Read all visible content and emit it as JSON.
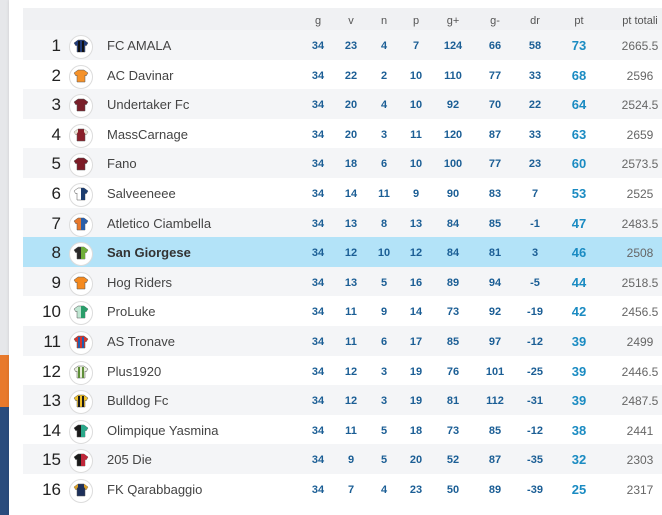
{
  "headers": {
    "g": "g",
    "v": "v",
    "n": "n",
    "p": "p",
    "gplus": "g+",
    "gminus": "g-",
    "dr": "dr",
    "pt": "pt",
    "tot": "pt totali"
  },
  "rows": [
    {
      "pos": "1",
      "team": "FC AMALA",
      "g": "34",
      "v": "23",
      "n": "4",
      "p": "7",
      "gplus": "124",
      "gminus": "66",
      "dr": "58",
      "pt": "73",
      "tot": "2665.5",
      "shirt": "#1f3a7a",
      "accent": "#111111",
      "style": "stripes"
    },
    {
      "pos": "2",
      "team": "AC Davinar",
      "g": "34",
      "v": "22",
      "n": "2",
      "p": "10",
      "gplus": "110",
      "gminus": "77",
      "dr": "33",
      "pt": "68",
      "tot": "2596",
      "shirt": "#f5922a",
      "accent": "#f5922a",
      "style": "plain"
    },
    {
      "pos": "3",
      "team": "Undertaker Fc",
      "g": "34",
      "v": "20",
      "n": "4",
      "p": "10",
      "gplus": "92",
      "gminus": "70",
      "dr": "22",
      "pt": "64",
      "tot": "2524.5",
      "shirt": "#7a1f2a",
      "accent": "#7a1f2a",
      "style": "plain"
    },
    {
      "pos": "4",
      "team": "MassCarnage",
      "g": "34",
      "v": "20",
      "n": "3",
      "p": "11",
      "gplus": "120",
      "gminus": "87",
      "dr": "33",
      "pt": "63",
      "tot": "2659",
      "shirt": "#8a1f2a",
      "accent": "#e8e0d0",
      "style": "sleeves"
    },
    {
      "pos": "5",
      "team": "Fano",
      "g": "34",
      "v": "18",
      "n": "6",
      "p": "10",
      "gplus": "100",
      "gminus": "77",
      "dr": "23",
      "pt": "60",
      "tot": "2573.5",
      "shirt": "#7d1b26",
      "accent": "#7d1b26",
      "style": "plain"
    },
    {
      "pos": "6",
      "team": "Salveeneee",
      "g": "34",
      "v": "14",
      "n": "11",
      "p": "9",
      "gplus": "90",
      "gminus": "83",
      "dr": "7",
      "pt": "53",
      "tot": "2525",
      "shirt": "#ffffff",
      "accent": "#1c3c6e",
      "style": "half"
    },
    {
      "pos": "7",
      "team": "Atletico Ciambella",
      "g": "34",
      "v": "13",
      "n": "8",
      "p": "13",
      "gplus": "84",
      "gminus": "85",
      "dr": "-1",
      "pt": "47",
      "tot": "2483.5",
      "shirt": "#e8792c",
      "accent": "#2a5ea8",
      "style": "half"
    },
    {
      "pos": "8",
      "team": "San Giorgese",
      "g": "34",
      "v": "12",
      "n": "10",
      "p": "12",
      "gplus": "84",
      "gminus": "81",
      "dr": "3",
      "pt": "46",
      "tot": "2508",
      "shirt": "#2a2a2a",
      "accent": "#6fae3a",
      "style": "half",
      "highlight": true
    },
    {
      "pos": "9",
      "team": "Hog Riders",
      "g": "34",
      "v": "13",
      "n": "5",
      "p": "16",
      "gplus": "89",
      "gminus": "94",
      "dr": "-5",
      "pt": "44",
      "tot": "2518.5",
      "shirt": "#f58a1f",
      "accent": "#f58a1f",
      "style": "plain"
    },
    {
      "pos": "10",
      "team": "ProLuke",
      "g": "34",
      "v": "11",
      "n": "9",
      "p": "14",
      "gplus": "73",
      "gminus": "92",
      "dr": "-19",
      "pt": "42",
      "tot": "2456.5",
      "shirt": "#bfe6d2",
      "accent": "#2a9d6a",
      "style": "half"
    },
    {
      "pos": "11",
      "team": "AS Tronave",
      "g": "34",
      "v": "11",
      "n": "6",
      "p": "17",
      "gplus": "85",
      "gminus": "97",
      "dr": "-12",
      "pt": "39",
      "tot": "2499",
      "shirt": "#d9342b",
      "accent": "#1f5fb0",
      "style": "stripes"
    },
    {
      "pos": "12",
      "team": "Plus1920",
      "g": "34",
      "v": "12",
      "n": "3",
      "p": "19",
      "gplus": "76",
      "gminus": "101",
      "dr": "-25",
      "pt": "39",
      "tot": "2446.5",
      "shirt": "#e8eedc",
      "accent": "#5f8f3a",
      "style": "stripes"
    },
    {
      "pos": "13",
      "team": "Bulldog Fc",
      "g": "34",
      "v": "12",
      "n": "3",
      "p": "19",
      "gplus": "81",
      "gminus": "112",
      "dr": "-31",
      "pt": "39",
      "tot": "2487.5",
      "shirt": "#f2c22a",
      "accent": "#1a1a1a",
      "style": "stripes"
    },
    {
      "pos": "14",
      "team": "Olimpique Yasmina",
      "g": "34",
      "v": "11",
      "n": "5",
      "p": "18",
      "gplus": "73",
      "gminus": "85",
      "dr": "-12",
      "pt": "38",
      "tot": "2441",
      "shirt": "#1a1a1a",
      "accent": "#2aa88a",
      "style": "half"
    },
    {
      "pos": "15",
      "team": "205 Die",
      "g": "34",
      "v": "9",
      "n": "5",
      "p": "20",
      "gplus": "52",
      "gminus": "87",
      "dr": "-35",
      "pt": "32",
      "tot": "2303",
      "shirt": "#1a1a1a",
      "accent": "#c0283a",
      "style": "half"
    },
    {
      "pos": "16",
      "team": "FK Qarabbaggio",
      "g": "34",
      "v": "7",
      "n": "4",
      "p": "23",
      "gplus": "50",
      "gminus": "89",
      "dr": "-39",
      "pt": "25",
      "tot": "2317",
      "shirt": "#1c2f5a",
      "accent": "#d9a02a",
      "style": "sleeves"
    }
  ]
}
